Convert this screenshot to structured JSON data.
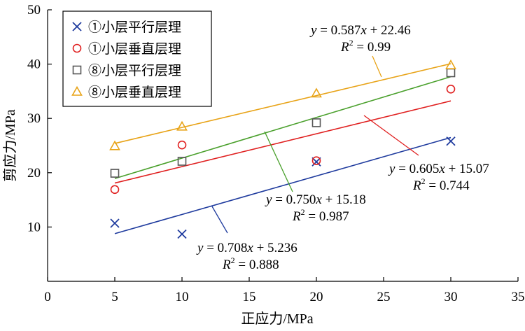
{
  "chart_data": {
    "type": "scatter",
    "xlabel": "正应力/MPa",
    "ylabel": "剪应力/MPa",
    "xlim": [
      0,
      35
    ],
    "ylim": [
      0,
      50
    ],
    "xticks": [
      0,
      5,
      10,
      15,
      20,
      25,
      30,
      35
    ],
    "yticks": [
      10,
      20,
      30,
      40,
      50
    ],
    "grid": false,
    "legend_position": "top-left",
    "series": [
      {
        "name": "①小层平行层理",
        "marker": "x",
        "color": "#1f3b9e",
        "x": [
          5,
          10,
          20,
          30
        ],
        "y": [
          10.7,
          8.7,
          22.0,
          25.8
        ],
        "fit": {
          "slope": 0.708,
          "intercept": 5.236,
          "x_range": [
            5,
            30
          ]
        },
        "equation_parts": {
          "y": "y",
          "eq_mid": " = 0.708",
          "x": "x",
          "eq_end": " + 5.236",
          "r": "R",
          "r_sup": "2",
          "r_end": " = 0.888"
        }
      },
      {
        "name": "①小层垂直层理",
        "marker": "circle",
        "color": "#e02020",
        "x": [
          5,
          10,
          20,
          30
        ],
        "y": [
          16.9,
          25.1,
          22.2,
          35.4
        ],
        "fit": {
          "slope": 0.605,
          "intercept": 15.07,
          "x_range": [
            5,
            30
          ]
        },
        "equation_parts": {
          "y": "y",
          "eq_mid": " = 0.605",
          "x": "x",
          "eq_end": " + 15.07",
          "r": "R",
          "r_sup": "2",
          "r_end": " = 0.744"
        }
      },
      {
        "name": "⑧小层平行层理",
        "marker": "square",
        "color": "#555555",
        "x": [
          5,
          10,
          20,
          30
        ],
        "y": [
          19.9,
          22.1,
          29.2,
          38.4
        ],
        "fit": {
          "slope": 0.75,
          "intercept": 15.18,
          "x_range": [
            5,
            30
          ]
        },
        "line_color": "#4aa02c",
        "equation_parts": {
          "y": "y",
          "eq_mid": " = 0.750",
          "x": "x",
          "eq_end": " + 15.18",
          "r": "R",
          "r_sup": "2",
          "r_end": " = 0.987"
        }
      },
      {
        "name": "⑧小层垂直层理",
        "marker": "triangle",
        "color": "#e8a317",
        "x": [
          5,
          10,
          20,
          30
        ],
        "y": [
          24.9,
          28.5,
          34.6,
          39.8
        ],
        "fit": {
          "slope": 0.587,
          "intercept": 22.46,
          "x_range": [
            5,
            30
          ]
        },
        "equation_parts": {
          "y": "y",
          "eq_mid": " = 0.587",
          "x": "x",
          "eq_end": " + 22.46",
          "r": "R",
          "r_sup": "2",
          "r_end": " = 0.99"
        }
      }
    ]
  }
}
